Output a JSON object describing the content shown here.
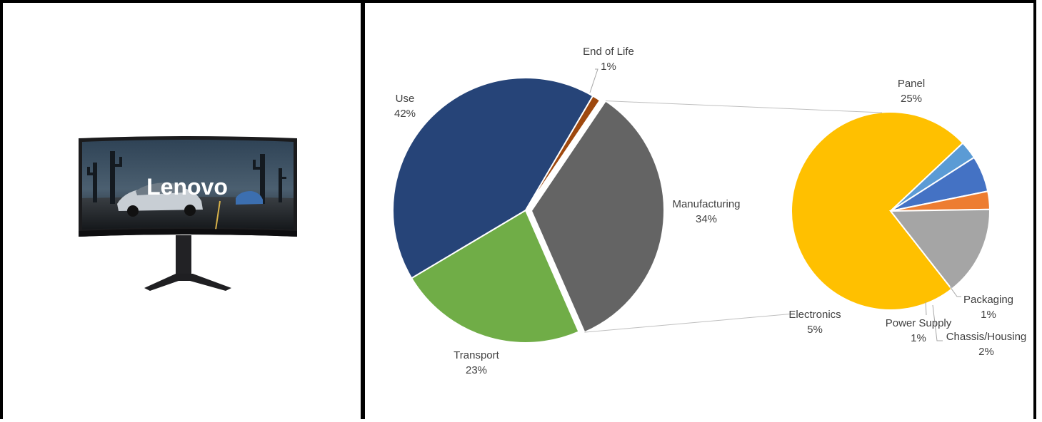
{
  "product": {
    "brand_logo": "Lenovo"
  },
  "chart_data": {
    "type": "pie",
    "subtype": "pie-of-pie",
    "main_pie": {
      "slices": [
        {
          "label": "Manufacturing",
          "value": 34,
          "display": "34%",
          "color": "#646464",
          "exploded": true
        },
        {
          "label": "Transport",
          "value": 23,
          "display": "23%",
          "color": "#70ad47"
        },
        {
          "label": "Use",
          "value": 42,
          "display": "42%",
          "color": "#264478"
        },
        {
          "label": "End of Life",
          "value": 1,
          "display": "1%",
          "color": "#9e480e"
        }
      ]
    },
    "secondary_pie": {
      "breakdown_of": "Manufacturing",
      "slices": [
        {
          "label": "Panel",
          "value": 25,
          "display": "25%",
          "color": "#ffc000"
        },
        {
          "label": "Packaging",
          "value": 1,
          "display": "1%",
          "color": "#5b9bd5"
        },
        {
          "label": "Chassis/Housing",
          "value": 2,
          "display": "2%",
          "color": "#4472c4"
        },
        {
          "label": "Power Supply",
          "value": 1,
          "display": "1%",
          "color": "#ed7d31"
        },
        {
          "label": "Electronics",
          "value": 5,
          "display": "5%",
          "color": "#a5a5a5"
        }
      ]
    },
    "connector_color": "#bfbfbf",
    "label_color": "#404040"
  }
}
